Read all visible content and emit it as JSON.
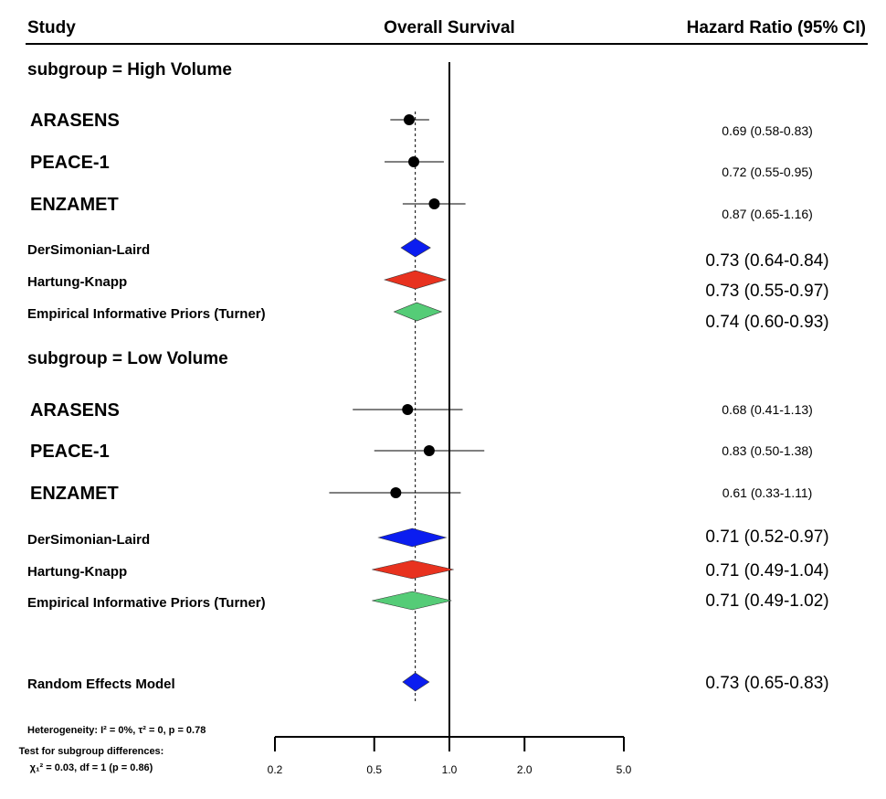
{
  "chart_data": {
    "type": "forest",
    "headers": {
      "study": "Study",
      "center": "Overall Survival",
      "right": "Hazard Ratio (95% CI)"
    },
    "x_axis": {
      "scale": "log",
      "ticks": [
        0.2,
        0.5,
        1.0,
        2.0,
        5.0
      ],
      "tick_labels": [
        "0.2",
        "0.5",
        "1.0",
        "2.0",
        "5.0"
      ]
    },
    "reference_line": 1.0,
    "pooled_line": 0.73,
    "rows": [
      {
        "kind": "subgroup",
        "label": "subgroup = High Volume"
      },
      {
        "kind": "study",
        "label": "ARASENS",
        "hr": 0.69,
        "lower": 0.58,
        "upper": 0.83,
        "hr_text": "0.69 (0.58-0.83)"
      },
      {
        "kind": "study",
        "label": "PEACE-1",
        "hr": 0.72,
        "lower": 0.55,
        "upper": 0.95,
        "hr_text": "0.72 (0.55-0.95)"
      },
      {
        "kind": "study",
        "label": "ENZAMET",
        "hr": 0.87,
        "lower": 0.65,
        "upper": 1.16,
        "hr_text": "0.87 (0.65-1.16)"
      },
      {
        "kind": "model",
        "label": "DerSimonian-Laird",
        "hr": 0.73,
        "lower": 0.64,
        "upper": 0.84,
        "color": "#0b1df0",
        "hr_text": "0.73 (0.64-0.84)"
      },
      {
        "kind": "model",
        "label": "Hartung-Knapp",
        "hr": 0.73,
        "lower": 0.55,
        "upper": 0.97,
        "color": "#e8321f",
        "hr_text": "0.73 (0.55-0.97)"
      },
      {
        "kind": "model",
        "label": "Empirical Informative Priors (Turner)",
        "hr": 0.74,
        "lower": 0.6,
        "upper": 0.93,
        "color": "#55cc77",
        "hr_text": "0.74 (0.60-0.93)"
      },
      {
        "kind": "subgroup",
        "label": "subgroup = Low Volume"
      },
      {
        "kind": "study",
        "label": "ARASENS",
        "hr": 0.68,
        "lower": 0.41,
        "upper": 1.13,
        "hr_text": "0.68 (0.41-1.13)"
      },
      {
        "kind": "study",
        "label": "PEACE-1",
        "hr": 0.83,
        "lower": 0.5,
        "upper": 1.38,
        "hr_text": "0.83 (0.50-1.38)"
      },
      {
        "kind": "study",
        "label": "ENZAMET",
        "hr": 0.61,
        "lower": 0.33,
        "upper": 1.11,
        "hr_text": "0.61 (0.33-1.11)"
      },
      {
        "kind": "model",
        "label": "DerSimonian-Laird",
        "hr": 0.71,
        "lower": 0.52,
        "upper": 0.97,
        "color": "#0b1df0",
        "hr_text": "0.71 (0.52-0.97)"
      },
      {
        "kind": "model",
        "label": "Hartung-Knapp",
        "hr": 0.71,
        "lower": 0.49,
        "upper": 1.04,
        "color": "#e8321f",
        "hr_text": "0.71 (0.49-1.04)"
      },
      {
        "kind": "model",
        "label": "Empirical Informative Priors (Turner)",
        "hr": 0.71,
        "lower": 0.49,
        "upper": 1.02,
        "color": "#55cc77",
        "hr_text": "0.71 (0.49-1.02)"
      },
      {
        "kind": "overall",
        "label": "Random Effects Model",
        "hr": 0.73,
        "lower": 0.65,
        "upper": 0.83,
        "color": "#0b1df0",
        "hr_text": "0.73 (0.65-0.83)"
      }
    ],
    "footer": {
      "heterogeneity": "Heterogeneity: I² = 0%, τ² = 0, p = 0.78",
      "subgroup_test_title": "Test for subgroup differences:",
      "subgroup_test_value": "χ₁² = 0.03, df = 1 (p = 0.86)"
    }
  }
}
